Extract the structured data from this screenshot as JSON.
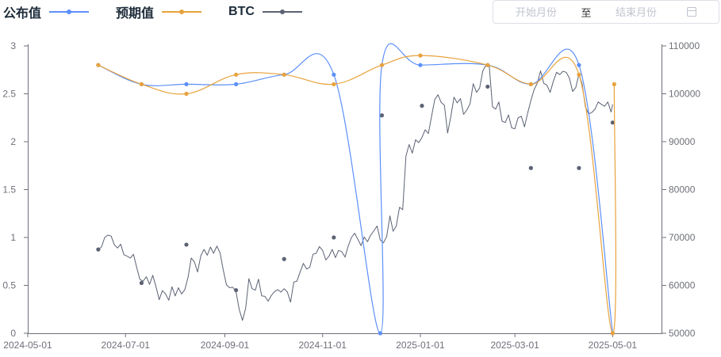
{
  "legend": [
    {
      "label": "公布值",
      "color": "#5b8ff9"
    },
    {
      "label": "预期值",
      "color": "#e8a23c"
    },
    {
      "label": "BTC",
      "color": "#5c6274"
    }
  ],
  "date_range": {
    "start_placeholder": "开始月份",
    "separator": "至",
    "end_placeholder": "结束月份",
    "icon": "calendar-icon"
  },
  "chart_data": {
    "type": "line",
    "x_ticks": [
      "2024-05-01",
      "2024-07-01",
      "2024-09-01",
      "2024-11-01",
      "2025-01-01",
      "2025-03-01",
      "2025-05-01"
    ],
    "x_range": [
      "2024-05-01",
      "2025-06-01"
    ],
    "y_left": {
      "min": 0,
      "max": 3,
      "ticks": [
        "0",
        "0.5",
        "1",
        "1.5",
        "2",
        "2.5",
        "3"
      ]
    },
    "y_right": {
      "min": 50000,
      "max": 110000,
      "ticks": [
        "50000",
        "60000",
        "70000",
        "80000",
        "90000",
        "100000",
        "110000"
      ]
    },
    "grid": false,
    "series": [
      {
        "name": "公布值",
        "axis": "left",
        "color": "#5b8ff9",
        "smooth": true,
        "points": [
          [
            "2024-06-14",
            2.8
          ],
          [
            "2024-07-11",
            2.6
          ],
          [
            "2024-08-08",
            2.6
          ],
          [
            "2024-09-08",
            2.6
          ],
          [
            "2024-10-08",
            2.7
          ],
          [
            "2024-11-08",
            2.7
          ],
          [
            "2024-12-07",
            0
          ],
          [
            "2024-12-08",
            2.8
          ],
          [
            "2025-01-01",
            2.8
          ],
          [
            "2025-02-12",
            2.8
          ],
          [
            "2025-03-11",
            2.6
          ],
          [
            "2025-04-10",
            2.8
          ],
          [
            "2025-05-01",
            0
          ]
        ]
      },
      {
        "name": "预期值",
        "axis": "left",
        "color": "#e8a23c",
        "smooth": true,
        "points": [
          [
            "2024-06-14",
            2.8
          ],
          [
            "2024-07-11",
            2.6
          ],
          [
            "2024-08-08",
            2.5
          ],
          [
            "2024-09-08",
            2.7
          ],
          [
            "2024-10-08",
            2.7
          ],
          [
            "2024-11-08",
            2.6
          ],
          [
            "2024-12-08",
            2.8
          ],
          [
            "2025-01-01",
            2.9
          ],
          [
            "2025-02-12",
            2.8
          ],
          [
            "2025-03-11",
            2.6
          ],
          [
            "2025-04-10",
            2.7
          ],
          [
            "2025-05-01",
            0
          ],
          [
            "2025-05-02",
            2.6
          ]
        ]
      },
      {
        "name": "BTC",
        "axis": "right",
        "color": "#5c6274",
        "smooth": false,
        "markers": [
          [
            "2024-06-14",
            67500
          ],
          [
            "2024-07-11",
            60500
          ],
          [
            "2024-08-08",
            68500
          ],
          [
            "2024-09-08",
            59000
          ],
          [
            "2024-10-08",
            65500
          ],
          [
            "2024-11-08",
            70000
          ],
          [
            "2024-12-08",
            95500
          ],
          [
            "2025-01-02",
            97500
          ],
          [
            "2025-02-12",
            101500
          ],
          [
            "2025-03-11",
            84500
          ],
          [
            "2025-04-10",
            84500
          ],
          [
            "2025-05-01",
            94000
          ]
        ],
        "points": [
          [
            "2024-06-14",
            67500
          ],
          [
            "2024-06-16",
            68000
          ],
          [
            "2024-06-18",
            70000
          ],
          [
            "2024-06-20",
            70500
          ],
          [
            "2024-06-22",
            70300
          ],
          [
            "2024-06-24",
            68500
          ],
          [
            "2024-06-26",
            67800
          ],
          [
            "2024-06-28",
            68600
          ],
          [
            "2024-06-30",
            66400
          ],
          [
            "2024-07-02",
            66100
          ],
          [
            "2024-07-04",
            65700
          ],
          [
            "2024-07-06",
            66500
          ],
          [
            "2024-07-08",
            63700
          ],
          [
            "2024-07-10",
            61200
          ],
          [
            "2024-07-12",
            60900
          ],
          [
            "2024-07-14",
            61800
          ],
          [
            "2024-07-16",
            60200
          ],
          [
            "2024-07-18",
            62100
          ],
          [
            "2024-07-20",
            59800
          ],
          [
            "2024-07-22",
            57000
          ],
          [
            "2024-07-24",
            58900
          ],
          [
            "2024-07-26",
            58200
          ],
          [
            "2024-07-28",
            56900
          ],
          [
            "2024-07-30",
            59700
          ],
          [
            "2024-08-01",
            57800
          ],
          [
            "2024-08-03",
            59500
          ],
          [
            "2024-08-05",
            58200
          ],
          [
            "2024-08-07",
            59100
          ],
          [
            "2024-08-09",
            61600
          ],
          [
            "2024-08-11",
            65700
          ],
          [
            "2024-08-13",
            64900
          ],
          [
            "2024-08-15",
            62800
          ],
          [
            "2024-08-17",
            66200
          ],
          [
            "2024-08-19",
            67500
          ],
          [
            "2024-08-21",
            66300
          ],
          [
            "2024-08-23",
            68000
          ],
          [
            "2024-08-25",
            66700
          ],
          [
            "2024-08-27",
            68200
          ],
          [
            "2024-08-29",
            66800
          ],
          [
            "2024-08-31",
            63200
          ],
          [
            "2024-09-02",
            60100
          ],
          [
            "2024-09-04",
            59500
          ],
          [
            "2024-09-06",
            59600
          ],
          [
            "2024-09-08",
            58600
          ],
          [
            "2024-09-10",
            54900
          ],
          [
            "2024-09-12",
            52700
          ],
          [
            "2024-09-14",
            55200
          ],
          [
            "2024-09-16",
            61400
          ],
          [
            "2024-09-18",
            59300
          ],
          [
            "2024-09-20",
            59000
          ],
          [
            "2024-09-22",
            61300
          ],
          [
            "2024-09-24",
            57800
          ],
          [
            "2024-09-26",
            57700
          ],
          [
            "2024-09-28",
            56700
          ],
          [
            "2024-09-30",
            57900
          ],
          [
            "2024-10-02",
            58700
          ],
          [
            "2024-10-04",
            59100
          ],
          [
            "2024-10-06",
            58600
          ],
          [
            "2024-10-08",
            59300
          ],
          [
            "2024-10-10",
            58600
          ],
          [
            "2024-10-12",
            56500
          ],
          [
            "2024-10-14",
            60700
          ],
          [
            "2024-10-16",
            60900
          ],
          [
            "2024-10-18",
            62800
          ],
          [
            "2024-10-20",
            64600
          ],
          [
            "2024-10-22",
            63400
          ],
          [
            "2024-10-24",
            63800
          ],
          [
            "2024-10-26",
            66500
          ],
          [
            "2024-10-28",
            66700
          ],
          [
            "2024-10-30",
            68100
          ],
          [
            "2024-11-01",
            67300
          ],
          [
            "2024-11-03",
            65300
          ],
          [
            "2024-11-05",
            66100
          ],
          [
            "2024-11-07",
            67500
          ],
          [
            "2024-11-09",
            65800
          ],
          [
            "2024-11-11",
            67300
          ],
          [
            "2024-11-13",
            67000
          ],
          [
            "2024-11-15",
            65900
          ],
          [
            "2024-11-17",
            68200
          ],
          [
            "2024-11-19",
            70000
          ],
          [
            "2024-11-21",
            70900
          ],
          [
            "2024-11-23",
            69600
          ],
          [
            "2024-11-25",
            68300
          ],
          [
            "2024-11-27",
            70100
          ],
          [
            "2024-11-29",
            69100
          ],
          [
            "2024-12-01",
            70500
          ],
          [
            "2024-12-03",
            71400
          ],
          [
            "2024-12-05",
            72400
          ],
          [
            "2024-12-07",
            69500
          ],
          [
            "2024-12-09",
            68900
          ],
          [
            "2024-12-11",
            70200
          ],
          [
            "2024-12-13",
            74500
          ],
          [
            "2024-12-15",
            71300
          ],
          [
            "2024-12-17",
            72400
          ],
          [
            "2024-12-19",
            76300
          ],
          [
            "2024-12-21",
            75800
          ],
          [
            "2024-12-23",
            87000
          ],
          [
            "2024-12-25",
            89400
          ],
          [
            "2024-12-27",
            87600
          ],
          [
            "2024-12-29",
            90400
          ],
          [
            "2024-12-31",
            89800
          ],
          [
            "2025-01-02",
            90900
          ],
          [
            "2025-01-04",
            92500
          ],
          [
            "2025-01-06",
            91700
          ],
          [
            "2025-01-08",
            95300
          ],
          [
            "2025-01-10",
            98800
          ],
          [
            "2025-01-12",
            99800
          ],
          [
            "2025-01-14",
            98200
          ],
          [
            "2025-01-16",
            97600
          ],
          [
            "2025-01-18",
            91800
          ],
          [
            "2025-01-20",
            95200
          ],
          [
            "2025-01-22",
            99300
          ],
          [
            "2025-01-24",
            98100
          ],
          [
            "2025-01-26",
            99000
          ],
          [
            "2025-01-28",
            95700
          ],
          [
            "2025-01-30",
            96600
          ],
          [
            "2025-02-01",
            97900
          ],
          [
            "2025-02-03",
            102100
          ],
          [
            "2025-02-05",
            100300
          ],
          [
            "2025-02-07",
            101200
          ],
          [
            "2025-02-09",
            104800
          ],
          [
            "2025-02-11",
            106000
          ],
          [
            "2025-02-13",
            105900
          ],
          [
            "2025-02-15",
            97300
          ],
          [
            "2025-02-17",
            96800
          ],
          [
            "2025-02-19",
            98300
          ],
          [
            "2025-02-21",
            94300
          ],
          [
            "2025-02-23",
            94000
          ],
          [
            "2025-02-25",
            95600
          ],
          [
            "2025-02-27",
            92900
          ],
          [
            "2025-03-01",
            92700
          ],
          [
            "2025-03-03",
            95000
          ],
          [
            "2025-03-05",
            95300
          ],
          [
            "2025-03-07",
            93100
          ],
          [
            "2025-03-09",
            96000
          ],
          [
            "2025-03-11",
            98600
          ],
          [
            "2025-03-13",
            100900
          ],
          [
            "2025-03-15",
            102200
          ],
          [
            "2025-03-17",
            104800
          ],
          [
            "2025-03-19",
            102200
          ],
          [
            "2025-03-21",
            101800
          ],
          [
            "2025-03-23",
            100300
          ],
          [
            "2025-03-25",
            102600
          ],
          [
            "2025-03-27",
            104500
          ],
          [
            "2025-03-29",
            104000
          ],
          [
            "2025-03-31",
            104700
          ],
          [
            "2025-04-02",
            104500
          ],
          [
            "2025-04-04",
            103300
          ],
          [
            "2025-04-06",
            100500
          ],
          [
            "2025-04-08",
            101300
          ],
          [
            "2025-04-10",
            104100
          ],
          [
            "2025-04-12",
            102000
          ],
          [
            "2025-04-14",
            97300
          ],
          [
            "2025-04-16",
            95800
          ],
          [
            "2025-04-18",
            96100
          ],
          [
            "2025-04-20",
            96800
          ],
          [
            "2025-04-22",
            98300
          ],
          [
            "2025-04-24",
            97800
          ],
          [
            "2025-04-26",
            97400
          ],
          [
            "2025-04-28",
            98300
          ],
          [
            "2025-04-30",
            96200
          ],
          [
            "2025-05-01",
            97800
          ]
        ]
      }
    ]
  }
}
